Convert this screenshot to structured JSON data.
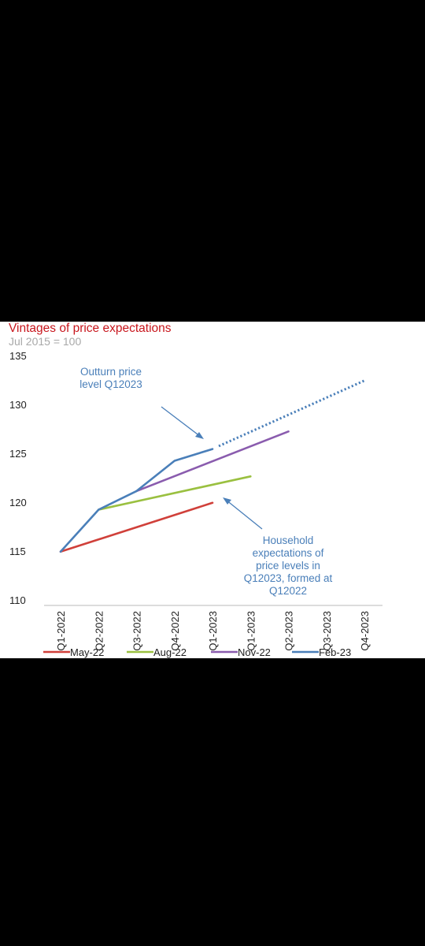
{
  "chart_data": {
    "type": "line",
    "title": "Vintages of price expectations",
    "subtitle": "Jul 2015 = 100",
    "xlabel": "",
    "ylabel": "",
    "ylim": [
      110,
      135
    ],
    "yticks": [
      110,
      115,
      120,
      125,
      130,
      135
    ],
    "categories": [
      "Q1-2022",
      "Q2-2022",
      "Q3-2022",
      "Q4-2022",
      "Q1-2023",
      "Q1-2023",
      "Q2-2023",
      "Q3-2023",
      "Q4-2023"
    ],
    "grid": false,
    "legend_position": "bottom",
    "series": [
      {
        "name": "May-22",
        "color": "#d0403a",
        "points": [
          [
            0,
            115.5
          ],
          [
            4,
            120.5
          ]
        ]
      },
      {
        "name": "Aug-22",
        "color": "#9ac040",
        "points": [
          [
            1,
            119.8
          ],
          [
            5,
            123.2
          ]
        ]
      },
      {
        "name": "Nov-22",
        "color": "#8a5cae",
        "points": [
          [
            2,
            121.7
          ],
          [
            6,
            127.8
          ]
        ]
      },
      {
        "name": "Feb-23",
        "color": "#4a7fb9",
        "points": [
          [
            0,
            115.5
          ],
          [
            1,
            119.8
          ],
          [
            2,
            121.7
          ],
          [
            3,
            124.8
          ],
          [
            4,
            126.0
          ]
        ],
        "dotted_projection": [
          [
            4,
            126.0
          ],
          [
            8,
            133.0
          ]
        ]
      }
    ],
    "annotations": [
      {
        "lines": [
          "Outturn price",
          "level Q12023"
        ],
        "color": "#4a7fb9"
      },
      {
        "lines": [
          "Household",
          "expectations of",
          "price levels in",
          "Q12023, formed at",
          "Q12022"
        ],
        "color": "#4a7fb9"
      }
    ]
  }
}
